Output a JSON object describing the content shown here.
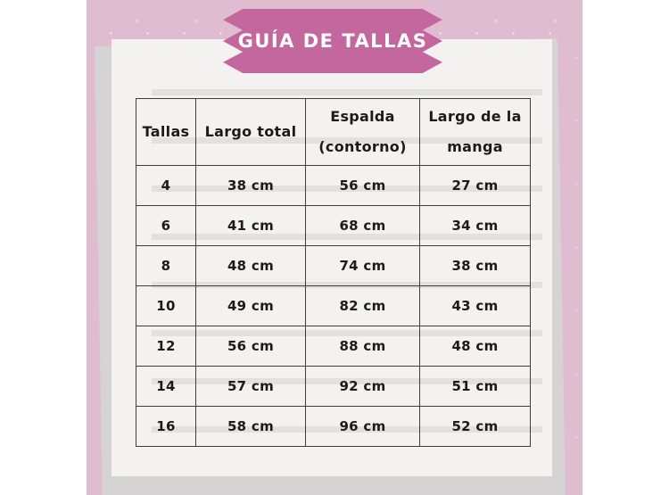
{
  "banner": {
    "title": "GUÍA DE TALLAS"
  },
  "table": {
    "columns": [
      "Tallas",
      "Largo total",
      "Espalda (contorno)",
      "Largo de la manga"
    ],
    "rows": [
      [
        "4",
        "38 cm",
        "56 cm",
        "27 cm"
      ],
      [
        "6",
        "41 cm",
        "68 cm",
        "34 cm"
      ],
      [
        "8",
        "48 cm",
        "74 cm",
        "38 cm"
      ],
      [
        "10",
        "49 cm",
        "82 cm",
        "43 cm"
      ],
      [
        "12",
        "56 cm",
        "88 cm",
        "48 cm"
      ],
      [
        "14",
        "57 cm",
        "92 cm",
        "51 cm"
      ],
      [
        "16",
        "58 cm",
        "96 cm",
        "52 cm"
      ]
    ]
  },
  "colors": {
    "page-bg": "#ffffff",
    "pink-bg": "#e0bcd1",
    "ribbon-pink": "#c4679e",
    "paper": "#f3f2f1",
    "shadow-gray": "#d6d3d4",
    "table-border": "#3e3c3d",
    "ink": "#1b1b1b"
  }
}
